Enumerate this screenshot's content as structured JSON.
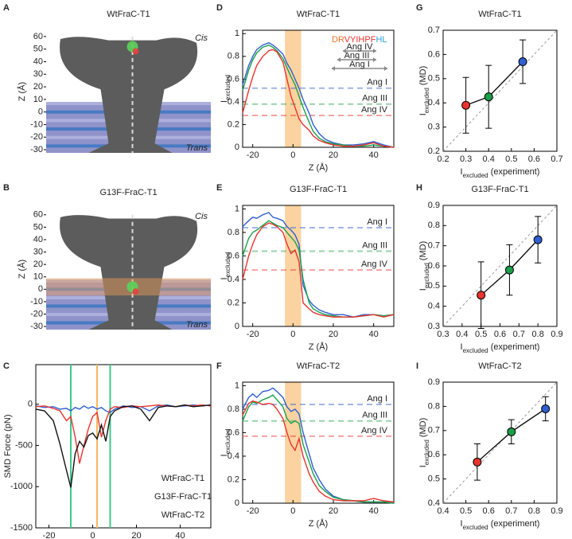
{
  "chart_data": [
    {
      "type": "image",
      "panel": "A",
      "title": "WtFraC-T1",
      "title_color": "#2f5fd0",
      "ylabel": "Z (Å)",
      "ylim": [
        -32.5,
        65
      ],
      "yticks": [
        60,
        50,
        40,
        30,
        20,
        10,
        0,
        -10,
        -20,
        -30
      ],
      "annotations": [
        "Cis",
        "Trans"
      ]
    },
    {
      "type": "image",
      "panel": "B",
      "title": "G13F-FraC-T1",
      "title_color": "#e8332e",
      "ylabel": "Z (Å)",
      "ylim": [
        -32.5,
        65
      ],
      "yticks": [
        60,
        50,
        40,
        30,
        20,
        10,
        0,
        -10,
        -20,
        -30
      ],
      "annotations": [
        "Cis",
        "Trans"
      ],
      "highlight": [
        -5,
        9
      ]
    },
    {
      "type": "line",
      "panel": "C",
      "ylabel": "SMD Force (pN)",
      "xlabel": "Z (Å)",
      "xlim": [
        -26,
        54
      ],
      "xticks": [
        -20,
        0,
        20,
        40
      ],
      "ylim": [
        -1500,
        480
      ],
      "yticks": [
        0,
        -500,
        -1000,
        -1500
      ],
      "vlines": [
        {
          "x": -10,
          "color": "#3cc98a"
        },
        {
          "x": 2,
          "color": "#f5b860"
        },
        {
          "x": 8,
          "color": "#3cc98a"
        }
      ],
      "x": [
        -26,
        -22,
        -18,
        -15,
        -12,
        -10,
        -8,
        -6,
        -4,
        -2,
        0,
        2,
        4,
        6,
        8,
        10,
        14,
        18,
        22,
        26,
        30,
        34,
        38,
        42,
        46,
        50,
        54
      ],
      "series": [
        {
          "name": "WtFraC-T1",
          "color": "#2f5fd0",
          "values": [
            -20,
            -40,
            -30,
            -60,
            -50,
            -80,
            -40,
            -60,
            -20,
            -50,
            -30,
            -60,
            -40,
            -80,
            -100,
            -60,
            -20,
            -40,
            -30,
            -80,
            -20,
            -10,
            -30,
            -20,
            -10,
            -20,
            -10
          ]
        },
        {
          "name": "G13F-FraC-T1",
          "color": "#e8332e",
          "values": [
            -30,
            -20,
            -50,
            -80,
            -200,
            -150,
            -400,
            -720,
            -500,
            -300,
            -150,
            -100,
            -400,
            -200,
            -60,
            -30,
            -40,
            -20,
            -30,
            -20,
            -10,
            -20,
            -30,
            -10,
            -20,
            -10,
            -20
          ]
        },
        {
          "name": "WtFraC-T2",
          "color": "#111111",
          "values": [
            -60,
            -80,
            -200,
            -480,
            -800,
            -1010,
            -600,
            -450,
            -520,
            -380,
            -350,
            -420,
            -250,
            -450,
            -150,
            -80,
            -30,
            -20,
            -60,
            -200,
            -40,
            -20,
            -30,
            -10,
            -30,
            -20,
            -10
          ]
        }
      ]
    },
    {
      "type": "line",
      "panel": "D",
      "title": "WtFraC-T1",
      "title_color": "#2f5fd0",
      "ylabel": [
        {
          "text": "I"
        },
        {
          "text": "excluded",
          "sub": true
        }
      ],
      "xlabel": "Z (Å)",
      "xlim": [
        -25,
        50
      ],
      "xticks": [
        -20,
        0,
        20,
        40
      ],
      "ylim": [
        0,
        1.03
      ],
      "yticks": [
        0,
        0.2,
        0.4,
        0.6,
        0.8,
        1
      ],
      "band": [
        -4,
        4
      ],
      "levels": [
        {
          "name": "Ang I",
          "value": 0.52,
          "color": "#2f5fd0"
        },
        {
          "name": "Ang III",
          "value": 0.38,
          "color": "#1a9e4a"
        },
        {
          "name": "Ang IV",
          "value": 0.28,
          "color": "#e8332e"
        }
      ],
      "sequence": [
        {
          "text": "DR",
          "color": "#e8742a"
        },
        {
          "text": "VYIHPF",
          "color": "#e8332e"
        },
        {
          "text": "HL",
          "color": "#2a9fd6"
        }
      ],
      "arrows": [
        {
          "name": "Ang IV",
          "color": "#e8332e"
        },
        {
          "name": "Ang III",
          "color": "#1a9e4a"
        },
        {
          "name": "Ang I",
          "color": "#2f5fd0"
        }
      ],
      "x": [
        -25,
        -22,
        -20,
        -18,
        -15,
        -12,
        -10,
        -8,
        -5,
        -3,
        -1,
        1,
        3,
        5,
        8,
        10,
        13,
        16,
        20,
        25,
        30,
        35,
        40,
        45,
        50
      ],
      "series": [
        {
          "color": "#2f5fd0",
          "values": [
            0.55,
            0.72,
            0.8,
            0.86,
            0.9,
            0.92,
            0.9,
            0.87,
            0.82,
            0.74,
            0.68,
            0.6,
            0.52,
            0.42,
            0.3,
            0.2,
            0.12,
            0.07,
            0.04,
            0.02,
            0.02,
            0.03,
            0.05,
            0.02,
            0
          ]
        },
        {
          "color": "#1a9e4a",
          "values": [
            0.5,
            0.68,
            0.77,
            0.83,
            0.88,
            0.9,
            0.88,
            0.85,
            0.78,
            0.7,
            0.62,
            0.55,
            0.45,
            0.35,
            0.22,
            0.14,
            0.08,
            0.05,
            0.03,
            0.02,
            0.01,
            0.01,
            0.02,
            0.01,
            0
          ]
        },
        {
          "color": "#e8332e",
          "values": [
            0.3,
            0.5,
            0.62,
            0.72,
            0.8,
            0.85,
            0.86,
            0.84,
            0.75,
            0.6,
            0.45,
            0.35,
            0.25,
            0.2,
            0.15,
            0.1,
            0.06,
            0.04,
            0.02,
            0.01,
            0.01,
            0.02,
            0.04,
            0.01,
            0
          ]
        }
      ]
    },
    {
      "type": "line",
      "panel": "E",
      "title": "G13F-FraC-T1",
      "title_color": "#e8332e",
      "ylabel": [
        {
          "text": "I"
        },
        {
          "text": "excluded",
          "sub": true
        }
      ],
      "xlabel": "Z (Å)",
      "xlim": [
        -25,
        50
      ],
      "xticks": [
        -20,
        0,
        20,
        40
      ],
      "ylim": [
        0,
        1.03
      ],
      "yticks": [
        0,
        0.2,
        0.4,
        0.6,
        0.8,
        1
      ],
      "band": [
        -4,
        4
      ],
      "levels": [
        {
          "name": "Ang I",
          "value": 0.84,
          "color": "#2f5fd0"
        },
        {
          "name": "Ang III",
          "value": 0.64,
          "color": "#1a9e4a"
        },
        {
          "name": "Ang IV",
          "value": 0.48,
          "color": "#e8332e"
        }
      ],
      "x": [
        -25,
        -22,
        -20,
        -18,
        -15,
        -12,
        -10,
        -8,
        -5,
        -3,
        -1,
        1,
        3,
        5,
        8,
        10,
        13,
        16,
        20,
        25,
        30,
        35,
        40,
        45,
        50
      ],
      "series": [
        {
          "color": "#2f5fd0",
          "values": [
            0.85,
            0.9,
            0.93,
            0.92,
            0.95,
            0.97,
            0.93,
            0.92,
            0.9,
            0.85,
            0.82,
            0.78,
            0.7,
            0.35,
            0.22,
            0.18,
            0.14,
            0.12,
            0.1,
            0.1,
            0.08,
            0.1,
            0.1,
            0.09,
            0.1
          ]
        },
        {
          "color": "#1a9e4a",
          "values": [
            0.6,
            0.75,
            0.8,
            0.82,
            0.86,
            0.9,
            0.88,
            0.86,
            0.84,
            0.8,
            0.76,
            0.72,
            0.65,
            0.4,
            0.2,
            0.15,
            0.12,
            0.1,
            0.09,
            0.08,
            0.08,
            0.09,
            0.1,
            0.09,
            0.1
          ]
        },
        {
          "color": "#e8332e",
          "values": [
            0.4,
            0.6,
            0.7,
            0.78,
            0.85,
            0.88,
            0.87,
            0.85,
            0.8,
            0.7,
            0.62,
            0.65,
            0.55,
            0.2,
            0.15,
            0.12,
            0.1,
            0.09,
            0.08,
            0.08,
            0.08,
            0.09,
            0.1,
            0.08,
            0.1
          ]
        }
      ]
    },
    {
      "type": "line",
      "panel": "F",
      "title": "WtFraC-T2",
      "title_color": "#111111",
      "ylabel": [
        {
          "text": "I"
        },
        {
          "text": "excluded",
          "sub": true
        }
      ],
      "xlabel": "Z (Å)",
      "xlim": [
        -25,
        50
      ],
      "xticks": [
        -20,
        0,
        20,
        40
      ],
      "ylim": [
        0,
        1.03
      ],
      "yticks": [
        0,
        0.2,
        0.4,
        0.6,
        0.8,
        1
      ],
      "band": [
        -4,
        4
      ],
      "levels": [
        {
          "name": "Ang I",
          "value": 0.84,
          "color": "#2f5fd0"
        },
        {
          "name": "Ang III",
          "value": 0.7,
          "color": "#1a9e4a"
        },
        {
          "name": "Ang IV",
          "value": 0.57,
          "color": "#e8332e"
        }
      ],
      "x": [
        -25,
        -22,
        -20,
        -18,
        -15,
        -12,
        -10,
        -8,
        -5,
        -3,
        -1,
        1,
        3,
        5,
        8,
        10,
        13,
        16,
        20,
        25,
        30,
        35,
        40,
        45,
        50
      ],
      "series": [
        {
          "color": "#2f5fd0",
          "values": [
            0.8,
            0.9,
            0.93,
            0.9,
            0.95,
            0.96,
            0.98,
            0.95,
            0.9,
            0.82,
            0.78,
            0.8,
            0.76,
            0.6,
            0.42,
            0.3,
            0.2,
            0.12,
            0.06,
            0.03,
            0.02,
            0.01,
            0.01,
            0.01,
            0
          ]
        },
        {
          "color": "#1a9e4a",
          "values": [
            0.7,
            0.82,
            0.86,
            0.85,
            0.88,
            0.9,
            0.92,
            0.88,
            0.82,
            0.72,
            0.68,
            0.7,
            0.68,
            0.5,
            0.35,
            0.25,
            0.15,
            0.1,
            0.05,
            0.03,
            0.02,
            0.01,
            0.01,
            0.01,
            0
          ]
        },
        {
          "color": "#e8332e",
          "values": [
            0.75,
            0.85,
            0.87,
            0.86,
            0.84,
            0.85,
            0.84,
            0.8,
            0.72,
            0.6,
            0.5,
            0.45,
            0.55,
            0.4,
            0.25,
            0.18,
            0.1,
            0.06,
            0.03,
            0.02,
            0.02,
            0.02,
            0.04,
            0.02,
            0.01
          ]
        }
      ]
    },
    {
      "type": "scatter",
      "panel": "G",
      "title": "WtFraC-T1",
      "title_color": "#2f5fd0",
      "ylabel": [
        {
          "text": "I"
        },
        {
          "text": "excluded",
          "sub": true
        },
        {
          "text": " (MD)"
        }
      ],
      "xlabel": [
        {
          "text": "I"
        },
        {
          "text": "excluded",
          "sub": true
        },
        {
          "text": " (experiment)"
        }
      ],
      "xlim": [
        0.2,
        0.7
      ],
      "xticks": [
        0.2,
        0.3,
        0.4,
        0.5,
        0.6,
        0.7
      ],
      "ylim": [
        0.2,
        0.7
      ],
      "yticks": [
        0.2,
        0.3,
        0.4,
        0.5,
        0.6,
        0.7
      ],
      "diagonal": true,
      "x": [
        0.3,
        0.4,
        0.55
      ],
      "values": [
        0.39,
        0.425,
        0.57
      ],
      "errors": [
        0.115,
        0.13,
        0.09
      ],
      "colors": [
        "#e8332e",
        "#1a9e4a",
        "#2f5fd0"
      ]
    },
    {
      "type": "scatter",
      "panel": "H",
      "title": "G13F-FraC-T1",
      "title_color": "#e8332e",
      "ylabel": [
        {
          "text": "I"
        },
        {
          "text": "excluded",
          "sub": true
        },
        {
          "text": " (MD)"
        }
      ],
      "xlabel": [
        {
          "text": "I"
        },
        {
          "text": "excluded",
          "sub": true
        },
        {
          "text": " (experiment)"
        }
      ],
      "xlim": [
        0.3,
        0.9
      ],
      "xticks": [
        0.3,
        0.4,
        0.5,
        0.6,
        0.7,
        0.8,
        0.9
      ],
      "ylim": [
        0.3,
        0.9
      ],
      "yticks": [
        0.3,
        0.4,
        0.5,
        0.6,
        0.7,
        0.8,
        0.9
      ],
      "diagonal": true,
      "x": [
        0.5,
        0.65,
        0.8
      ],
      "values": [
        0.455,
        0.58,
        0.73
      ],
      "errors": [
        0.165,
        0.125,
        0.115
      ],
      "colors": [
        "#e8332e",
        "#1a9e4a",
        "#2f5fd0"
      ]
    },
    {
      "type": "scatter",
      "panel": "I",
      "title": "WtFraC-T2",
      "title_color": "#111111",
      "ylabel": [
        {
          "text": "I"
        },
        {
          "text": "excluded",
          "sub": true
        },
        {
          "text": " (MD)"
        }
      ],
      "xlabel": [
        {
          "text": "I"
        },
        {
          "text": "excluded",
          "sub": true
        },
        {
          "text": " (experiment)"
        }
      ],
      "xlim": [
        0.4,
        0.9
      ],
      "xticks": [
        0.4,
        0.5,
        0.6,
        0.7,
        0.8,
        0.9
      ],
      "ylim": [
        0.4,
        0.9
      ],
      "yticks": [
        0.4,
        0.5,
        0.6,
        0.7,
        0.8,
        0.9
      ],
      "diagonal": true,
      "x": [
        0.55,
        0.7,
        0.85
      ],
      "values": [
        0.57,
        0.695,
        0.79
      ],
      "errors": [
        0.075,
        0.05,
        0.05
      ],
      "colors": [
        "#e8332e",
        "#1a9e4a",
        "#2f5fd0"
      ]
    }
  ]
}
